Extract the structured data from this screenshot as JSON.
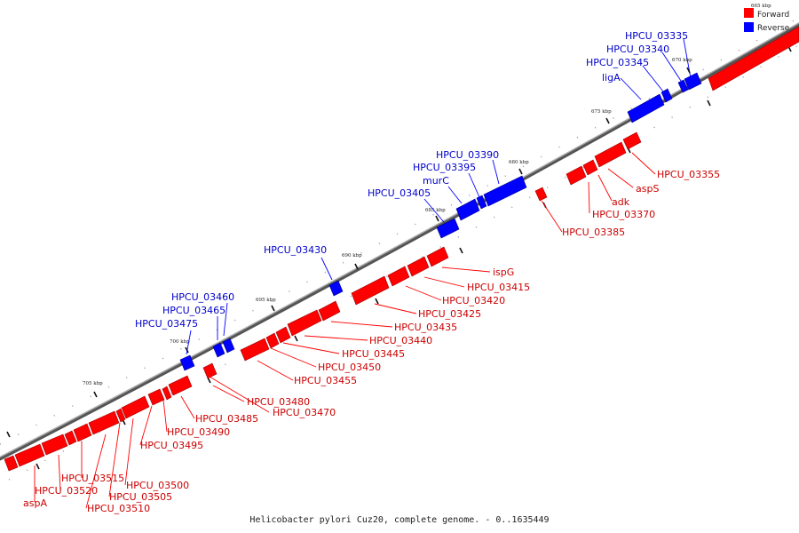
{
  "caption": "Helicobacter pylori Cuz20, complete genome. - 0..1635449",
  "legend": {
    "top_faint_label": "665 kbp",
    "items": [
      {
        "label": "Forward",
        "color": "#ff0000"
      },
      {
        "label": "Reverse",
        "color": "#0000ff"
      }
    ]
  },
  "colors": {
    "forward": "#ff0000",
    "reverse": "#0000ff",
    "backbone": "#888888",
    "label_forward": "#cc0000",
    "label_reverse": "#0000cc"
  },
  "ticks": [
    "670 kbp",
    "675 kbp",
    "680 kbp",
    "685 kbp",
    "690 kbp",
    "695 kbp",
    "700 kbp",
    "705 kbp"
  ],
  "forward_labels": [
    "HPCU_03355",
    "aspS",
    "adk",
    "HPCU_03370",
    "HPCU_03385",
    "ispG",
    "HPCU_03415",
    "HPCU_03420",
    "HPCU_03425",
    "HPCU_03435",
    "HPCU_03440",
    "HPCU_03445",
    "HPCU_03450",
    "HPCU_03455",
    "HPCU_03480",
    "HPCU_03470",
    "HPCU_03485",
    "HPCU_03490",
    "HPCU_03495",
    "HPCU_03500",
    "HPCU_03505",
    "HPCU_03510",
    "HPCU_03515",
    "HPCU_03520",
    "aspA"
  ],
  "reverse_labels": [
    "HPCU_03335",
    "HPCU_03340",
    "HPCU_03345",
    "ligA",
    "HPCU_03390",
    "HPCU_03395",
    "murC",
    "HPCU_03405",
    "HPCU_03430",
    "HPCU_03460",
    "HPCU_03465",
    "HPCU_03475"
  ]
}
